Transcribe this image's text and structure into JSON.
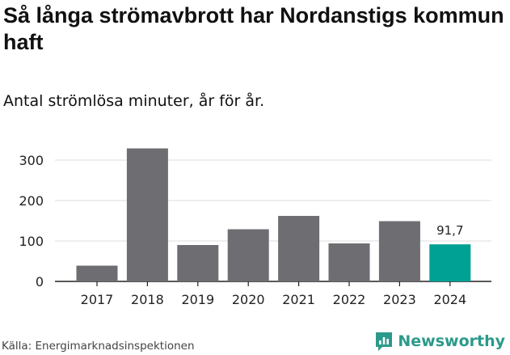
{
  "title": "Så långa strömavbrott har Nordanstigs kommun haft",
  "subtitle": "Antal strömlösa minuter, år för år.",
  "source": "Källa: Energimarknadsinspektionen",
  "brand": {
    "name": "Newsworthy",
    "icon": "newsworthy-logo-icon",
    "color": "#2b9a8a"
  },
  "colors": {
    "bar": "#6e6d72",
    "highlight": "#00a195",
    "grid": "#dddddd",
    "axis": "#222222"
  },
  "chart_data": {
    "type": "bar",
    "title": "Så långa strömavbrott har Nordanstigs kommun haft",
    "subtitle": "Antal strömlösa minuter, år för år.",
    "xlabel": "",
    "ylabel": "",
    "categories": [
      "2017",
      "2018",
      "2019",
      "2020",
      "2021",
      "2022",
      "2023",
      "2024"
    ],
    "values": [
      39,
      329,
      90,
      129,
      162,
      94,
      149,
      91.7
    ],
    "highlight_index": 7,
    "data_labels": [
      {
        "index": 7,
        "text": "91,7"
      }
    ],
    "yticks": [
      0,
      100,
      200,
      300
    ],
    "ylim": [
      0,
      340
    ],
    "grid": true
  }
}
